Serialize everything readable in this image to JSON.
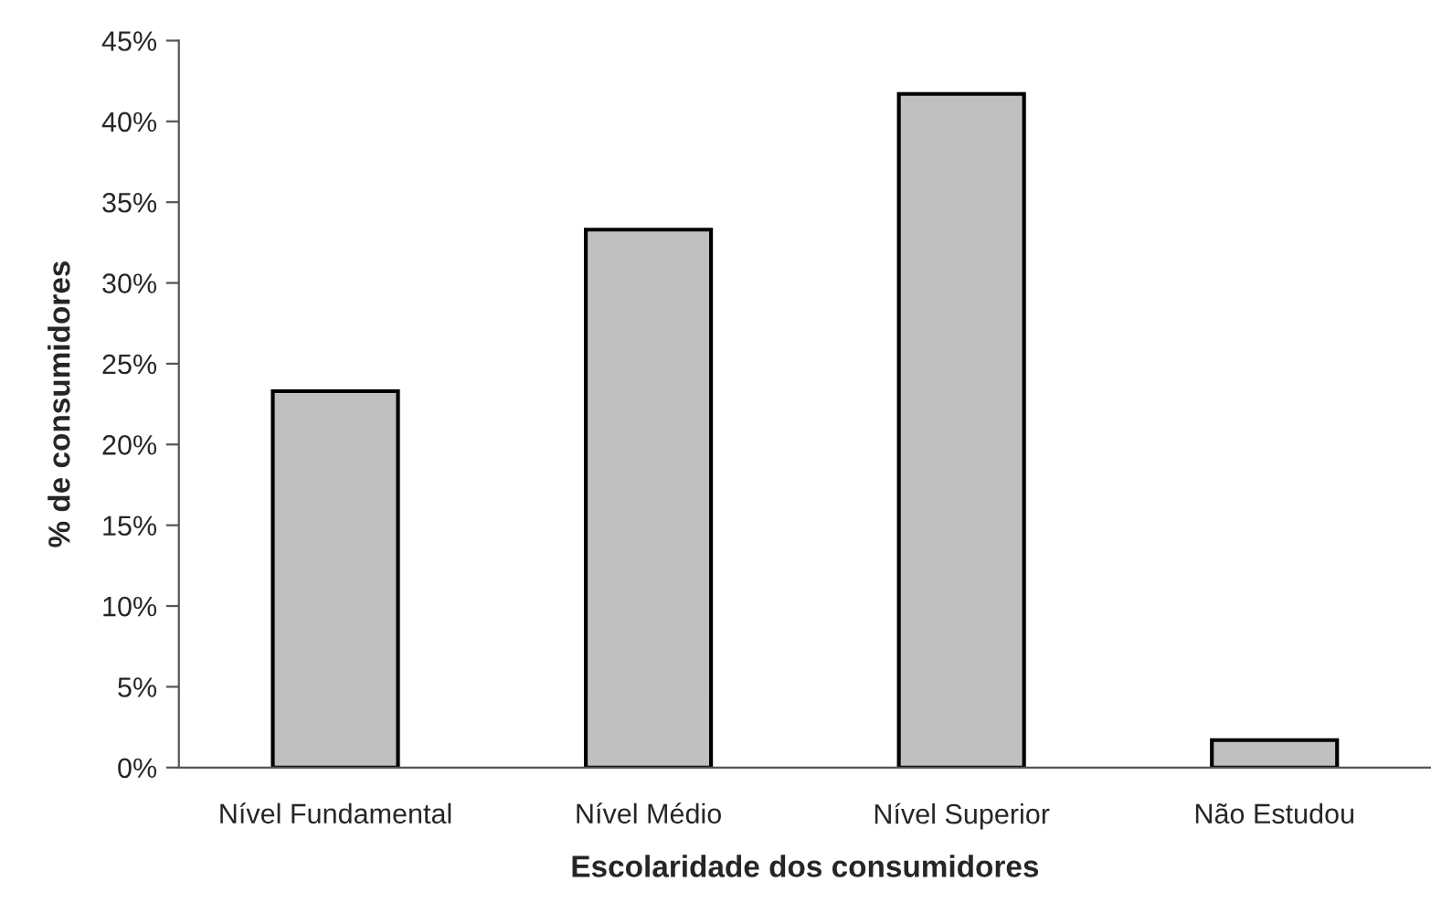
{
  "chart_data": {
    "type": "bar",
    "xlabel": "Escolaridade dos consumidores",
    "ylabel": "% de consumidores",
    "categories": [
      "Nível Fundamental",
      "Nível Médio",
      "Nível Superior",
      "Não Estudou"
    ],
    "values": [
      23.3,
      33.3,
      41.7,
      1.7
    ],
    "color": "#c0c0c0",
    "ylim": [
      0,
      45
    ],
    "yticks": [
      {
        "value": 0,
        "label": "0%"
      },
      {
        "value": 5,
        "label": "5%"
      },
      {
        "value": 10,
        "label": "10%"
      },
      {
        "value": 15,
        "label": "15%"
      },
      {
        "value": 20,
        "label": "20%"
      },
      {
        "value": 25,
        "label": "25%"
      },
      {
        "value": 30,
        "label": "30%"
      },
      {
        "value": 35,
        "label": "35%"
      },
      {
        "value": 40,
        "label": "40%"
      },
      {
        "value": 45,
        "label": "45%"
      }
    ],
    "grid": false,
    "legend": false
  }
}
